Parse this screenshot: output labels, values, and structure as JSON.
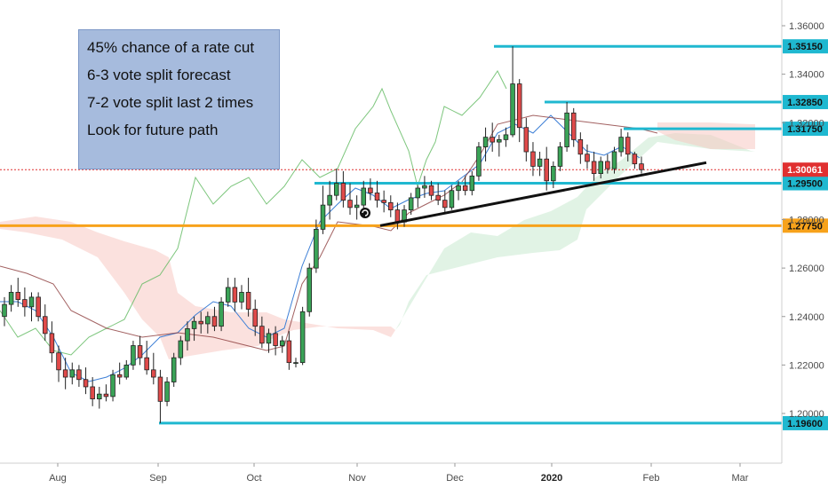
{
  "note": {
    "lines": [
      "45% chance of a rate cut",
      "6-3 vote split forecast",
      "7-2 vote split last 2 times",
      "Look for future path"
    ]
  },
  "chart_data": {
    "type": "candlestick",
    "ylim": [
      1.184,
      1.37
    ],
    "y_ticks": [
      {
        "value": 1.36,
        "label": "1.36000"
      },
      {
        "value": 1.34,
        "label": "1.34000"
      },
      {
        "value": 1.32,
        "label": "1.32000"
      },
      {
        "value": 1.28,
        "label": "1.28000"
      },
      {
        "value": 1.26,
        "label": "1.26000"
      },
      {
        "value": 1.24,
        "label": "1.24000"
      },
      {
        "value": 1.22,
        "label": "1.22000"
      },
      {
        "value": 1.2,
        "label": "1.20000"
      }
    ],
    "x_ticks": [
      {
        "label": "Aug",
        "bold": false
      },
      {
        "label": "Sep",
        "bold": false
      },
      {
        "label": "Oct",
        "bold": false
      },
      {
        "label": "Nov",
        "bold": false
      },
      {
        "label": "Dec",
        "bold": false
      },
      {
        "label": "2020",
        "bold": true
      },
      {
        "label": "Feb",
        "bold": false
      },
      {
        "label": "Mar",
        "bold": false
      }
    ],
    "levels": [
      {
        "value": 1.3515,
        "label": "1.35150",
        "color": "#1fb8d0"
      },
      {
        "value": 1.3285,
        "label": "1.32850",
        "color": "#1fb8d0"
      },
      {
        "value": 1.3175,
        "label": "1.31750",
        "color": "#1fb8d0"
      },
      {
        "value": 1.295,
        "label": "1.29500",
        "color": "#1fb8d0"
      },
      {
        "value": 1.2775,
        "label": "1.27750",
        "color": "#f7a21b"
      },
      {
        "value": 1.196,
        "label": "1.19600",
        "color": "#1fb8d0"
      }
    ],
    "current_price": {
      "value": 1.30061,
      "label": "1.30061",
      "color": "#e03030"
    },
    "trendline": {
      "from": {
        "value": 1.2775
      },
      "to": {
        "value": 1.3035
      }
    },
    "candles": [
      [
        1.24,
        1.248,
        1.236,
        1.245
      ],
      [
        1.245,
        1.253,
        1.242,
        1.25
      ],
      [
        1.25,
        1.256,
        1.244,
        1.247
      ],
      [
        1.247,
        1.252,
        1.24,
        1.244
      ],
      [
        1.244,
        1.25,
        1.238,
        1.248
      ],
      [
        1.248,
        1.25,
        1.238,
        1.24
      ],
      [
        1.24,
        1.245,
        1.23,
        1.233
      ],
      [
        1.233,
        1.238,
        1.221,
        1.225
      ],
      [
        1.225,
        1.228,
        1.213,
        1.218
      ],
      [
        1.218,
        1.223,
        1.21,
        1.215
      ],
      [
        1.215,
        1.221,
        1.212,
        1.218
      ],
      [
        1.218,
        1.22,
        1.211,
        1.214
      ],
      [
        1.214,
        1.219,
        1.208,
        1.211
      ],
      [
        1.211,
        1.215,
        1.203,
        1.206
      ],
      [
        1.206,
        1.211,
        1.202,
        1.208
      ],
      [
        1.208,
        1.212,
        1.205,
        1.207
      ],
      [
        1.207,
        1.218,
        1.205,
        1.216
      ],
      [
        1.216,
        1.221,
        1.212,
        1.215
      ],
      [
        1.215,
        1.222,
        1.214,
        1.22
      ],
      [
        1.22,
        1.23,
        1.218,
        1.228
      ],
      [
        1.228,
        1.232,
        1.22,
        1.223
      ],
      [
        1.223,
        1.23,
        1.216,
        1.218
      ],
      [
        1.218,
        1.225,
        1.212,
        1.215
      ],
      [
        1.215,
        1.218,
        1.196,
        1.205
      ],
      [
        1.205,
        1.215,
        1.203,
        1.213
      ],
      [
        1.213,
        1.225,
        1.211,
        1.223
      ],
      [
        1.223,
        1.232,
        1.22,
        1.23
      ],
      [
        1.23,
        1.238,
        1.226,
        1.235
      ],
      [
        1.235,
        1.24,
        1.23,
        1.238
      ],
      [
        1.238,
        1.242,
        1.233,
        1.237
      ],
      [
        1.237,
        1.242,
        1.233,
        1.24
      ],
      [
        1.24,
        1.244,
        1.234,
        1.236
      ],
      [
        1.236,
        1.248,
        1.234,
        1.246
      ],
      [
        1.246,
        1.256,
        1.244,
        1.252
      ],
      [
        1.252,
        1.256,
        1.242,
        1.246
      ],
      [
        1.246,
        1.253,
        1.243,
        1.25
      ],
      [
        1.25,
        1.256,
        1.24,
        1.243
      ],
      [
        1.243,
        1.247,
        1.232,
        1.236
      ],
      [
        1.236,
        1.24,
        1.227,
        1.229
      ],
      [
        1.229,
        1.235,
        1.225,
        1.233
      ],
      [
        1.233,
        1.236,
        1.224,
        1.228
      ],
      [
        1.228,
        1.232,
        1.225,
        1.23
      ],
      [
        1.23,
        1.234,
        1.218,
        1.221
      ],
      [
        1.221,
        1.223,
        1.219,
        1.221
      ],
      [
        1.221,
        1.244,
        1.22,
        1.242
      ],
      [
        1.242,
        1.262,
        1.24,
        1.26
      ],
      [
        1.26,
        1.28,
        1.258,
        1.276
      ],
      [
        1.276,
        1.294,
        1.274,
        1.286
      ],
      [
        1.286,
        1.296,
        1.28,
        1.29
      ],
      [
        1.29,
        1.301,
        1.288,
        1.295
      ],
      [
        1.295,
        1.3,
        1.285,
        1.288
      ],
      [
        1.288,
        1.295,
        1.282,
        1.285
      ],
      [
        1.285,
        1.29,
        1.28,
        1.286
      ],
      [
        1.286,
        1.296,
        1.284,
        1.293
      ],
      [
        1.293,
        1.297,
        1.288,
        1.291
      ],
      [
        1.291,
        1.296,
        1.285,
        1.288
      ],
      [
        1.288,
        1.292,
        1.283,
        1.287
      ],
      [
        1.287,
        1.29,
        1.281,
        1.284
      ],
      [
        1.284,
        1.287,
        1.276,
        1.279
      ],
      [
        1.279,
        1.286,
        1.277,
        1.284
      ],
      [
        1.284,
        1.291,
        1.282,
        1.289
      ],
      [
        1.289,
        1.294,
        1.285,
        1.293
      ],
      [
        1.293,
        1.298,
        1.289,
        1.294
      ],
      [
        1.294,
        1.296,
        1.288,
        1.29
      ],
      [
        1.29,
        1.295,
        1.286,
        1.288
      ],
      [
        1.288,
        1.292,
        1.283,
        1.285
      ],
      [
        1.285,
        1.294,
        1.284,
        1.292
      ],
      [
        1.292,
        1.296,
        1.288,
        1.294
      ],
      [
        1.294,
        1.298,
        1.29,
        1.292
      ],
      [
        1.292,
        1.3,
        1.29,
        1.298
      ],
      [
        1.298,
        1.312,
        1.296,
        1.31
      ],
      [
        1.31,
        1.318,
        1.304,
        1.314
      ],
      [
        1.314,
        1.32,
        1.308,
        1.312
      ],
      [
        1.312,
        1.315,
        1.306,
        1.313
      ],
      [
        1.313,
        1.318,
        1.31,
        1.315
      ],
      [
        1.315,
        1.3515,
        1.314,
        1.336
      ],
      [
        1.336,
        1.338,
        1.312,
        1.318
      ],
      [
        1.318,
        1.322,
        1.304,
        1.308
      ],
      [
        1.308,
        1.312,
        1.298,
        1.302
      ],
      [
        1.302,
        1.308,
        1.298,
        1.305
      ],
      [
        1.305,
        1.31,
        1.292,
        1.296
      ],
      [
        1.296,
        1.304,
        1.293,
        1.302
      ],
      [
        1.302,
        1.312,
        1.3,
        1.31
      ],
      [
        1.31,
        1.3285,
        1.308,
        1.324
      ],
      [
        1.324,
        1.326,
        1.31,
        1.313
      ],
      [
        1.313,
        1.316,
        1.303,
        1.307
      ],
      [
        1.307,
        1.311,
        1.301,
        1.304
      ],
      [
        1.304,
        1.308,
        1.296,
        1.299
      ],
      [
        1.299,
        1.306,
        1.297,
        1.304
      ],
      [
        1.304,
        1.307,
        1.299,
        1.301
      ],
      [
        1.301,
        1.31,
        1.299,
        1.308
      ],
      [
        1.308,
        1.3175,
        1.306,
        1.314
      ],
      [
        1.314,
        1.316,
        1.304,
        1.307
      ],
      [
        1.307,
        1.308,
        1.301,
        1.303
      ],
      [
        1.303,
        1.306,
        1.299,
        1.3006
      ]
    ]
  }
}
